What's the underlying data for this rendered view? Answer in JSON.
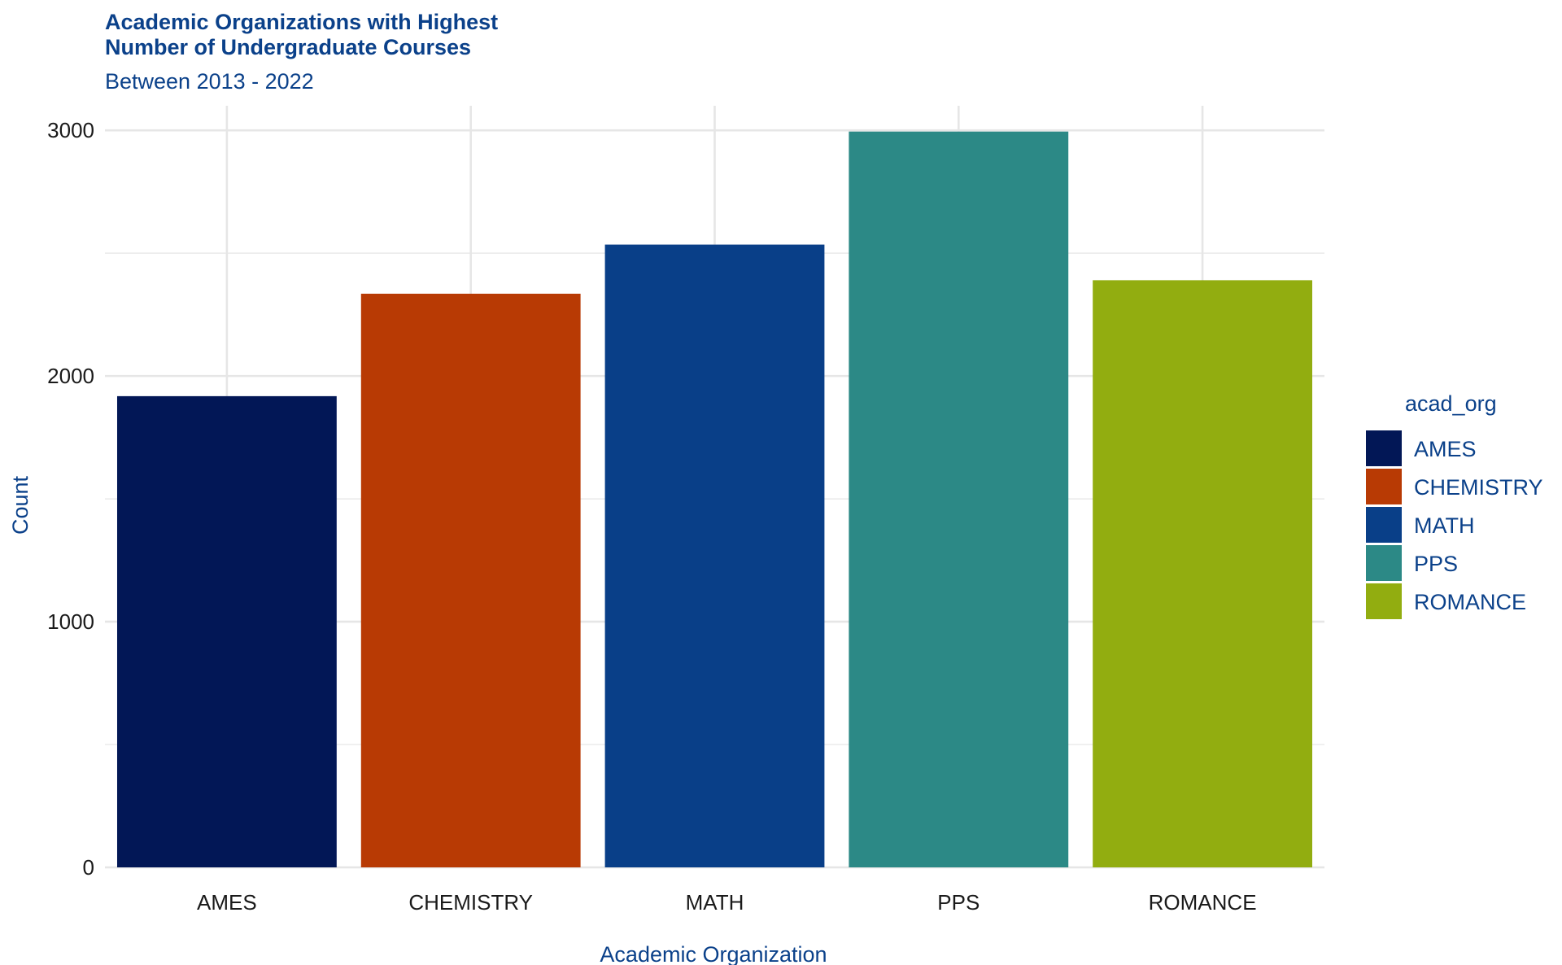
{
  "chart_data": {
    "type": "bar",
    "title": "Academic Organizations with Highest\nNumber of Undergraduate Courses",
    "subtitle": "Between 2013 - 2022",
    "xlabel": "Academic Organization",
    "ylabel": "Count",
    "categories": [
      "AMES",
      "CHEMISTRY",
      "MATH",
      "PPS",
      "ROMANCE"
    ],
    "values": [
      1918,
      2335,
      2535,
      2995,
      2390
    ],
    "colors": [
      "#021756",
      "#B83A04",
      "#093F88",
      "#2C8986",
      "#92AD10"
    ],
    "ylim": [
      0,
      3100
    ],
    "yticks": [
      0,
      1000,
      2000,
      3000
    ],
    "ytick_labels": [
      "0",
      "1000",
      "2000",
      "3000"
    ],
    "grid": true,
    "legend": {
      "title": "acad_org",
      "position": "right",
      "entries": [
        "AMES",
        "CHEMISTRY",
        "MATH",
        "PPS",
        "ROMANCE"
      ]
    },
    "theme": {
      "title_color": "#0B418A",
      "grid_color": "#E6E6E6",
      "text_color": "#1A1A1A"
    }
  }
}
